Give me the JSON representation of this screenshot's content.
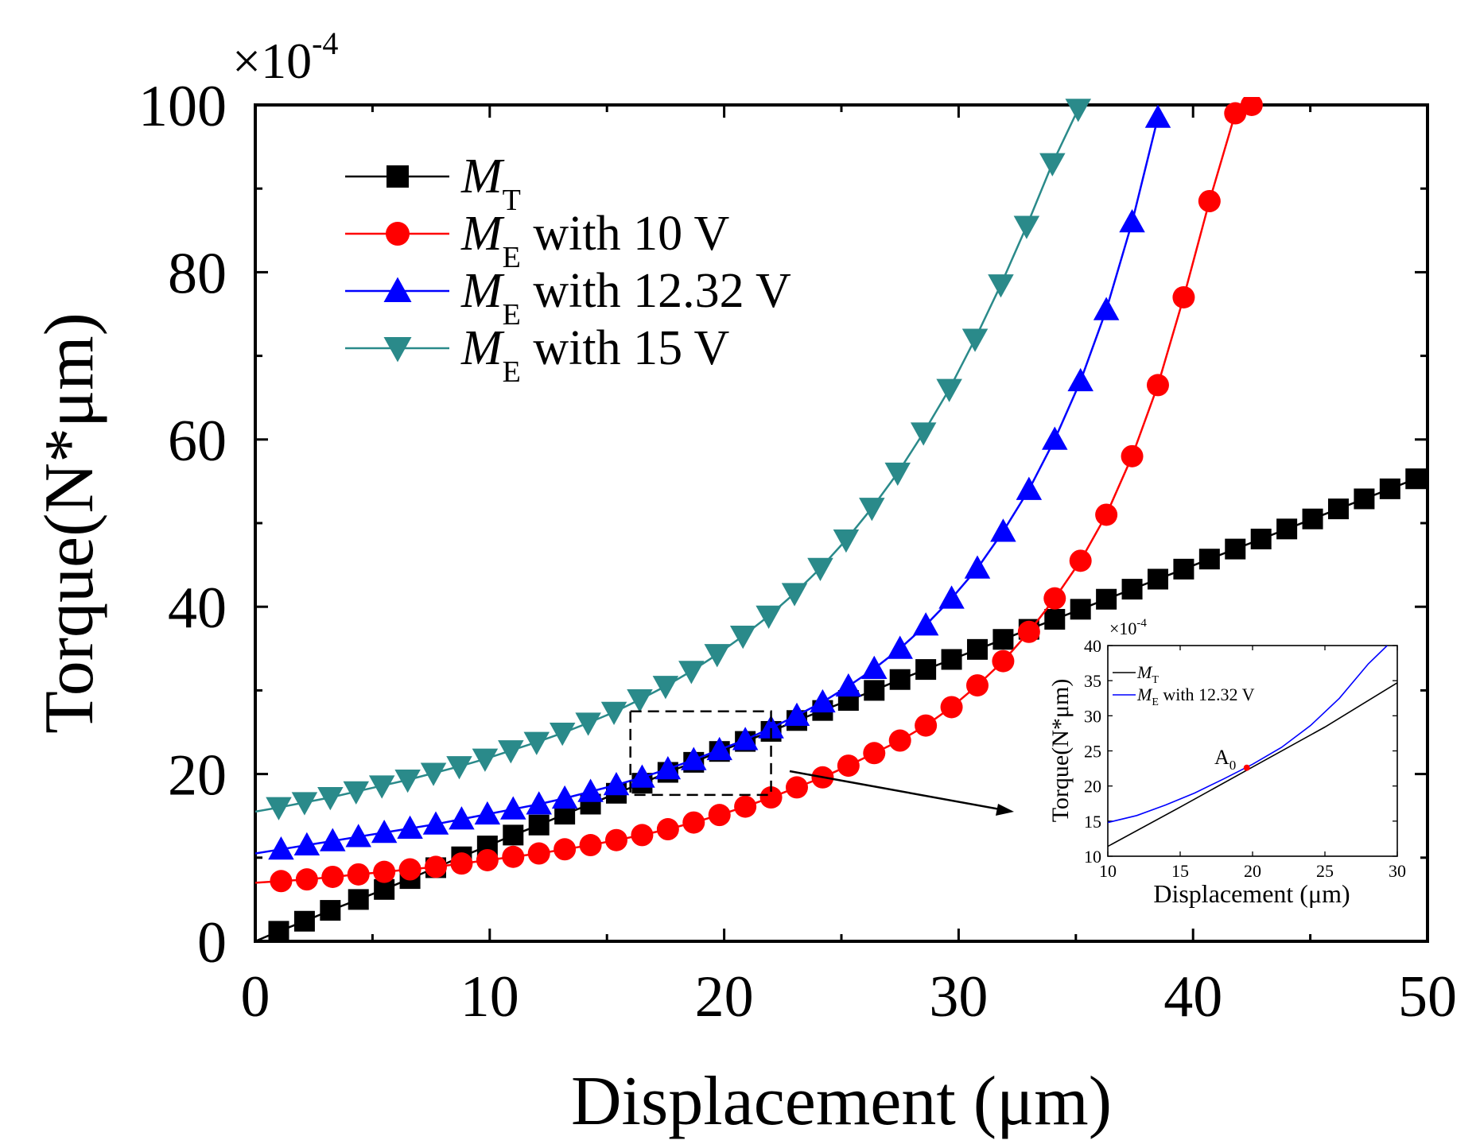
{
  "chart_data": {
    "type": "line",
    "title": "",
    "xlabel": "Displacement (μm)",
    "ylabel": "Torque(N*μm)",
    "y_multiplier": "×10",
    "y_multiplier_exp": "-4",
    "xlim": [
      0,
      50
    ],
    "ylim": [
      0,
      100
    ],
    "x_ticks": [
      "0",
      "10",
      "20",
      "30",
      "40",
      "50"
    ],
    "y_ticks": [
      "0",
      "20",
      "40",
      "60",
      "80",
      "100"
    ],
    "legend_position": "top-left",
    "series": [
      {
        "name": "M_T",
        "symbol": "M",
        "subscript": "T",
        "suffix": "",
        "color": "#000000",
        "marker": "square",
        "x": [
          0.0,
          1.0,
          2.1,
          3.2,
          4.4,
          5.5,
          6.6,
          7.7,
          8.8,
          9.9,
          11.0,
          12.1,
          13.2,
          14.3,
          15.4,
          16.5,
          17.6,
          18.7,
          19.8,
          20.9,
          22.0,
          23.1,
          24.2,
          25.3,
          26.4,
          27.5,
          28.6,
          29.7,
          30.8,
          31.9,
          33.0,
          34.1,
          35.2,
          36.3,
          37.4,
          38.5,
          39.6,
          40.7,
          41.8,
          42.9,
          44.0,
          45.1,
          46.2,
          47.3,
          48.4,
          49.5
        ],
        "values": [
          0.0,
          1.2,
          2.4,
          3.7,
          5.0,
          6.2,
          7.5,
          8.8,
          10.1,
          11.4,
          12.7,
          13.9,
          15.2,
          16.4,
          17.7,
          18.9,
          20.2,
          21.4,
          22.7,
          23.9,
          25.1,
          26.4,
          27.6,
          28.8,
          30.0,
          31.3,
          32.5,
          33.7,
          34.9,
          36.1,
          37.3,
          38.5,
          39.7,
          40.9,
          42.1,
          43.3,
          44.5,
          45.7,
          46.9,
          48.1,
          49.3,
          50.5,
          51.7,
          52.9,
          54.1,
          55.3
        ]
      },
      {
        "name": "M_E with 10 V",
        "symbol": "M",
        "subscript": "E",
        "suffix": " with 10 V",
        "color": "#ff0000",
        "marker": "circle",
        "x": [
          0.0,
          1.1,
          2.2,
          3.3,
          4.4,
          5.5,
          6.6,
          7.7,
          8.8,
          9.9,
          11.0,
          12.1,
          13.2,
          14.3,
          15.4,
          16.5,
          17.6,
          18.7,
          19.8,
          20.9,
          22.0,
          23.1,
          24.2,
          25.3,
          26.4,
          27.5,
          28.6,
          29.7,
          30.8,
          31.9,
          33.0,
          34.1,
          35.2,
          36.3,
          37.4,
          38.5,
          39.6,
          40.7,
          41.8,
          42.5
        ],
        "values": [
          7.0,
          7.2,
          7.4,
          7.7,
          8.0,
          8.3,
          8.6,
          8.9,
          9.3,
          9.7,
          10.1,
          10.5,
          11.0,
          11.5,
          12.1,
          12.7,
          13.4,
          14.2,
          15.1,
          16.1,
          17.2,
          18.4,
          19.6,
          21.0,
          22.5,
          24.0,
          25.8,
          28.0,
          30.6,
          33.5,
          37.0,
          41.0,
          45.5,
          51.0,
          58.0,
          66.5,
          77.0,
          88.5,
          99.0,
          100.0
        ]
      },
      {
        "name": "M_E with 12.32 V",
        "symbol": "M",
        "subscript": "E",
        "suffix": " with 12.32 V",
        "color": "#0000ff",
        "marker": "triangle-up",
        "x": [
          0.0,
          1.1,
          2.2,
          3.3,
          4.4,
          5.5,
          6.6,
          7.7,
          8.8,
          9.9,
          11.0,
          12.1,
          13.2,
          14.3,
          15.4,
          16.5,
          17.6,
          18.7,
          19.8,
          20.9,
          22.0,
          23.1,
          24.2,
          25.3,
          26.4,
          27.5,
          28.6,
          29.7,
          30.8,
          31.9,
          33.0,
          34.1,
          35.2,
          36.3,
          37.4,
          38.5
        ],
        "values": [
          10.5,
          11.0,
          11.5,
          12.0,
          12.5,
          13.0,
          13.5,
          14.0,
          14.6,
          15.2,
          15.8,
          16.4,
          17.1,
          17.9,
          18.7,
          19.6,
          20.6,
          21.7,
          22.9,
          24.1,
          25.5,
          27.0,
          28.6,
          30.5,
          32.6,
          35.0,
          37.8,
          41.0,
          44.6,
          49.0,
          54.0,
          60.0,
          67.0,
          75.5,
          86.0,
          98.5
        ]
      },
      {
        "name": "M_E with 15 V",
        "symbol": "M",
        "subscript": "E",
        "suffix": " with 15 V",
        "color": "#2a8a8a",
        "marker": "triangle-down",
        "x": [
          0.0,
          1.0,
          2.1,
          3.2,
          4.3,
          5.4,
          6.5,
          7.6,
          8.7,
          9.8,
          10.9,
          12.0,
          13.1,
          14.2,
          15.3,
          16.4,
          17.5,
          18.6,
          19.7,
          20.8,
          21.9,
          23.0,
          24.1,
          25.2,
          26.3,
          27.4,
          28.5,
          29.6,
          30.7,
          31.8,
          32.9,
          34.0,
          35.1
        ],
        "values": [
          15.5,
          16.0,
          16.6,
          17.2,
          17.9,
          18.6,
          19.3,
          20.1,
          20.9,
          21.8,
          22.8,
          23.8,
          24.9,
          26.1,
          27.4,
          28.9,
          30.5,
          32.3,
          34.3,
          36.5,
          38.9,
          41.6,
          44.6,
          48.0,
          51.8,
          56.0,
          60.8,
          66.0,
          72.0,
          78.5,
          85.5,
          93.0,
          99.5
        ]
      }
    ],
    "annotation": {
      "type": "dashed-rectangle",
      "x_range": [
        16,
        22
      ],
      "y_range": [
        17.5,
        27.5
      ],
      "arrow": "zoom-to-inset"
    },
    "inset": {
      "type": "line",
      "xlabel": "Displacement (μm)",
      "ylabel": "Torque(N*μm)",
      "y_multiplier": "×10",
      "y_multiplier_exp": "-4",
      "xlim": [
        10,
        30
      ],
      "ylim": [
        10,
        40
      ],
      "x_ticks": [
        "10",
        "15",
        "20",
        "25",
        "30"
      ],
      "y_ticks": [
        "10",
        "15",
        "20",
        "25",
        "30",
        "35",
        "40"
      ],
      "point_label": "A",
      "point_label_sub": "0",
      "point": {
        "x": 19.6,
        "y": 22.6,
        "color": "#ff0000"
      },
      "series": [
        {
          "name": "M_T",
          "symbol": "M",
          "subscript": "T",
          "suffix": "",
          "color": "#000000",
          "x": [
            10,
            15,
            20,
            25,
            30
          ],
          "values": [
            11.4,
            17.0,
            22.7,
            28.4,
            34.7
          ]
        },
        {
          "name": "M_E with 12.32 V",
          "symbol": "M",
          "subscript": "E",
          "suffix": " with 12.32 V",
          "color": "#0000ff",
          "x": [
            10,
            12,
            14,
            16,
            18,
            20,
            22,
            24,
            26,
            28,
            29.3
          ],
          "values": [
            14.8,
            15.8,
            17.3,
            19.0,
            21.0,
            23.1,
            25.5,
            28.6,
            32.5,
            37.4,
            40.0
          ]
        }
      ]
    }
  }
}
